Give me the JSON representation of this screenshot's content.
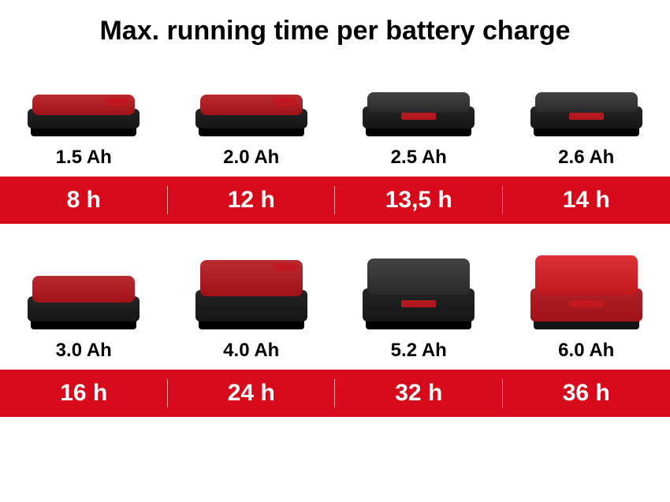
{
  "title": "Max. running time per battery charge",
  "title_fontsize": 34,
  "rows": [
    {
      "items": [
        {
          "capacity": "1.5 Ah",
          "runtime": "8 h",
          "style": "slim"
        },
        {
          "capacity": "2.0 Ah",
          "runtime": "12 h",
          "style": "slim"
        },
        {
          "capacity": "2.5 Ah",
          "runtime": "13,5 h",
          "style": "slim-dark"
        },
        {
          "capacity": "2.6 Ah",
          "runtime": "14 h",
          "style": "slim-dark"
        }
      ]
    },
    {
      "items": [
        {
          "capacity": "3.0 Ah",
          "runtime": "16 h",
          "style": "medium"
        },
        {
          "capacity": "4.0 Ah",
          "runtime": "24 h",
          "style": "tall"
        },
        {
          "capacity": "5.2 Ah",
          "runtime": "32 h",
          "style": "tall-dark"
        },
        {
          "capacity": "6.0 Ah",
          "runtime": "36 h",
          "style": "tall-red"
        }
      ]
    }
  ],
  "colors": {
    "accent_red": "#d60a1a",
    "battery_red": "#a01218",
    "battery_red_light": "#c4181f",
    "battery_dark": "#161616",
    "battery_dark2": "#2a2a2a",
    "battery_black": "#000000",
    "text_white": "#ffffff",
    "text_black": "#000000",
    "background": "#ffffff"
  },
  "fontsizes": {
    "capacity": 24,
    "runtime": 30
  }
}
